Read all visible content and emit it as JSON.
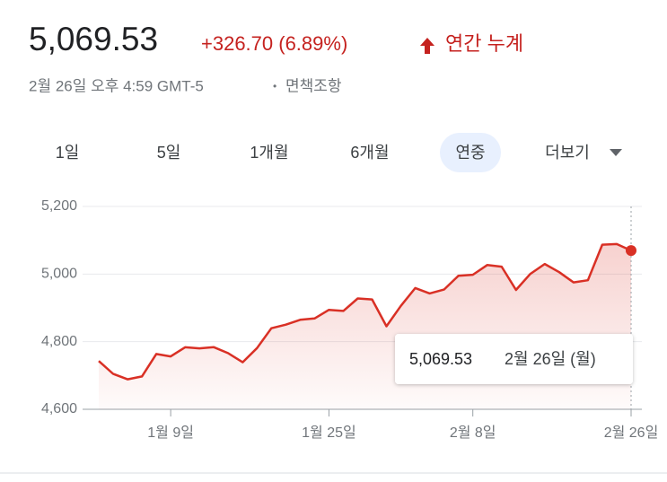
{
  "header": {
    "price": "5,069.53",
    "change": "+326.70 (6.89%)",
    "period": "연간 누계",
    "timestamp": "2월 26일 오후 4:59 GMT-5",
    "separator": "•",
    "disclaimer": "면책조항"
  },
  "tabs": [
    "1일",
    "5일",
    "1개월",
    "6개월",
    "연중",
    "더보기"
  ],
  "selected_tab": "연중",
  "tooltip": {
    "value": "5,069.53",
    "date": "2월 26일 (월)"
  },
  "chart_data": {
    "type": "line",
    "categories": [
      null,
      null,
      null,
      null,
      null,
      "1월 9일",
      null,
      null,
      null,
      null,
      null,
      null,
      null,
      null,
      null,
      null,
      "1월 25일",
      null,
      null,
      null,
      null,
      null,
      null,
      null,
      null,
      null,
      "2월 8일",
      null,
      null,
      null,
      null,
      null,
      null,
      null,
      null,
      null,
      null,
      "2월 26일"
    ],
    "series": [
      {
        "color": "#d93025",
        "values": [
          4742.83,
          4704.81,
          4688.68,
          4697.24,
          4763.54,
          4756.5,
          4783.45,
          4780.24,
          4783.83,
          4765.98,
          4739.21,
          4780.94,
          4839.81,
          4850.43,
          4864.6,
          4868.55,
          4894.16,
          4890.97,
          4927.93,
          4924.97,
          4845.65,
          4906.19,
          4958.61,
          4942.81,
          4954.23,
          4995.06,
          4997.91,
          5026.61,
          5021.84,
          4953.17,
          5000.62,
          5029.73,
          5005.57,
          4975.51,
          4981.8,
          5087.03,
          5088.8,
          5069.53
        ]
      }
    ],
    "ylim": [
      4600,
      5200
    ],
    "yticks": [
      {
        "value": 4600,
        "label": "4,600"
      },
      {
        "value": 4800,
        "label": "4,800"
      },
      {
        "value": 5000,
        "label": "5,000"
      },
      {
        "value": 5200,
        "label": "5,200"
      }
    ],
    "grid": true
  }
}
